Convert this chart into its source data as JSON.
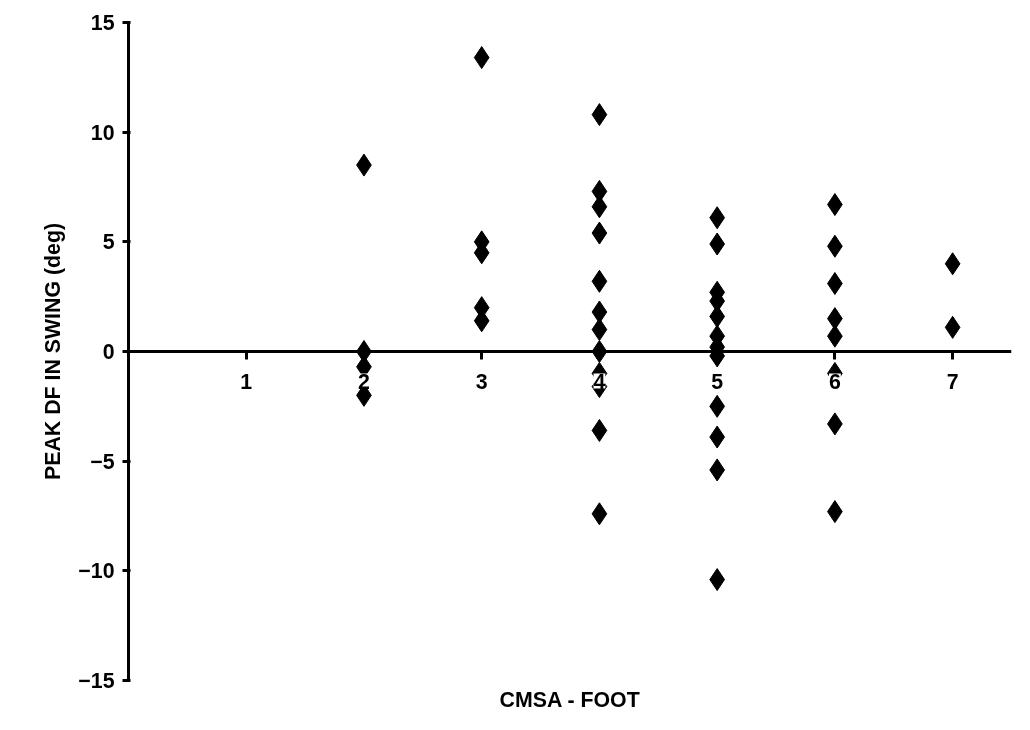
{
  "chart_data": {
    "type": "scatter",
    "xlabel": "CMSA - FOOT",
    "ylabel": "PEAK DF IN SWING (deg)",
    "x": [
      2,
      2,
      2,
      2,
      3,
      3,
      3,
      3,
      3,
      4,
      4,
      4,
      4,
      4,
      4,
      4,
      4,
      4,
      4,
      4,
      4,
      5,
      5,
      5,
      5,
      5,
      5,
      5,
      5,
      5,
      5,
      5,
      5,
      6,
      6,
      6,
      6,
      6,
      6,
      6,
      6,
      7,
      7
    ],
    "values": [
      8.5,
      0,
      -0.7,
      -2.0,
      13.4,
      5.0,
      4.5,
      2.0,
      1.4,
      10.8,
      7.3,
      6.6,
      5.4,
      3.2,
      1.8,
      1.0,
      0,
      -1.0,
      -1.6,
      -3.6,
      -7.4,
      6.1,
      4.9,
      2.7,
      2.3,
      1.6,
      0.7,
      0.2,
      -0.2,
      -2.5,
      -3.9,
      -5.4,
      -10.4,
      6.7,
      4.8,
      3.1,
      1.5,
      0.7,
      -1.0,
      -3.3,
      -7.3,
      4.0,
      1.1
    ],
    "color": "#000000",
    "marker": "diamond",
    "xlim": [
      0,
      7.5
    ],
    "xticks": [
      1,
      2,
      3,
      4,
      5,
      6,
      7
    ],
    "ylim": [
      -15,
      15
    ],
    "yticks": [
      -15,
      -10,
      -5,
      0,
      5,
      10,
      15
    ],
    "grid": false
  }
}
